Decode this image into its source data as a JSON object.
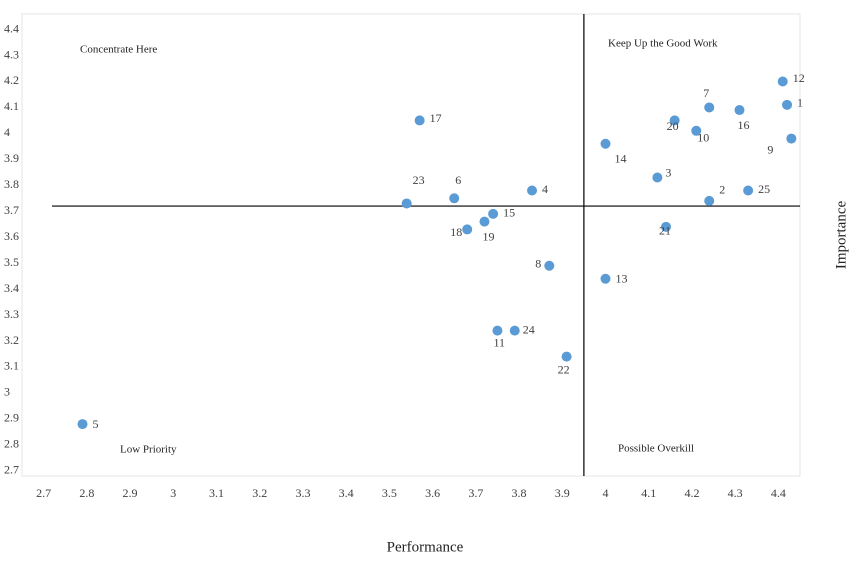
{
  "chart_data": {
    "type": "scatter",
    "x_label": "Performance",
    "y_label": "Importance",
    "quadrant_labels": [
      "Concentrate Here",
      "Keep Up the Good Work",
      "Low Priority",
      "Possible Overkill"
    ],
    "point_labels": [
      "1",
      "2",
      "3",
      "4",
      "5",
      "6",
      "7",
      "8",
      "9",
      "10",
      "11",
      "12",
      "13",
      "14",
      "15",
      "16",
      "17",
      "18",
      "19",
      "20",
      "21",
      "22",
      "23",
      "24",
      "25"
    ],
    "x": [
      4.42,
      4.24,
      4.12,
      3.83,
      2.79,
      3.65,
      4.24,
      3.87,
      4.43,
      4.21,
      3.75,
      4.41,
      4.0,
      4.0,
      3.74,
      4.31,
      3.57,
      3.68,
      3.72,
      4.16,
      4.14,
      3.91,
      3.54,
      3.79,
      4.33
    ],
    "y": [
      4.11,
      3.74,
      3.83,
      3.78,
      2.88,
      3.75,
      4.1,
      3.49,
      3.98,
      4.01,
      3.24,
      4.2,
      3.44,
      3.96,
      3.69,
      4.09,
      4.05,
      3.63,
      3.66,
      4.05,
      3.64,
      3.14,
      3.73,
      3.24,
      3.78
    ],
    "color": "#5b9bd5",
    "x_reference": 3.95,
    "y_reference": 3.72,
    "xlim": [
      2.65,
      4.45
    ],
    "ylim": [
      2.68,
      4.46
    ],
    "xticks": [
      2.7,
      2.8,
      2.9,
      {
        "value": 3,
        "label": "3"
      },
      3.1,
      3.2,
      3.3,
      3.4,
      3.5,
      3.6,
      3.7,
      3.8,
      3.9,
      {
        "value": 4,
        "label": "4"
      },
      4.1,
      4.2,
      4.3,
      4.4
    ],
    "yticks": [
      2.7,
      2.8,
      2.9,
      {
        "value": 3,
        "label": "3"
      },
      3.1,
      3.2,
      3.3,
      3.4,
      3.5,
      3.6,
      3.7,
      3.8,
      3.9,
      {
        "value": 4,
        "label": "4"
      },
      4.1,
      4.2,
      4.3,
      4.4
    ]
  }
}
